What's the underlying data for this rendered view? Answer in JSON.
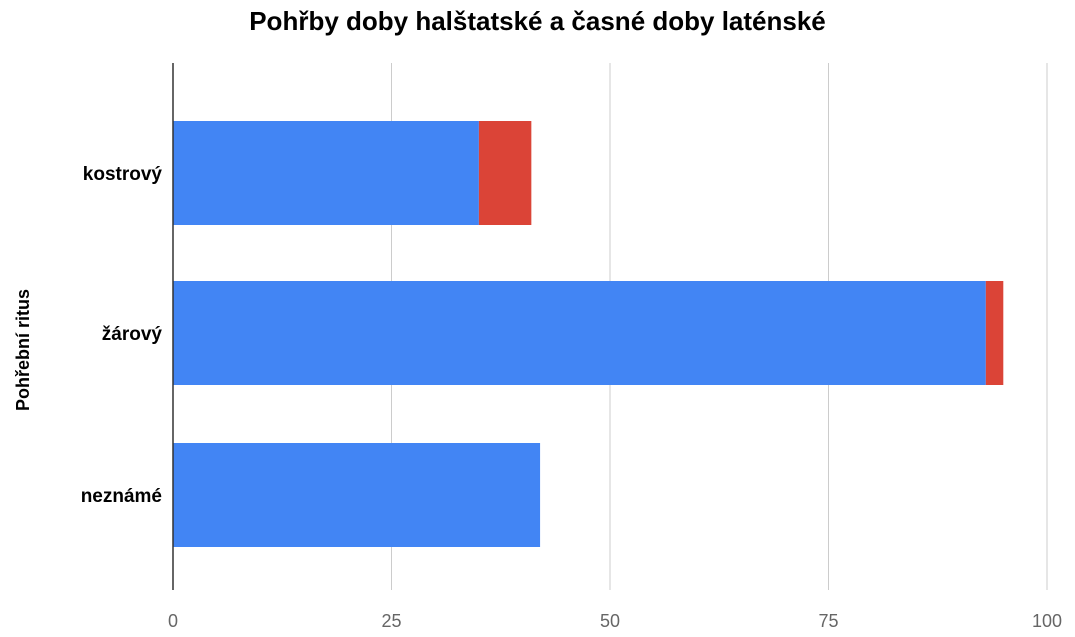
{
  "chart_data": {
    "type": "bar",
    "orientation": "horizontal",
    "stacked": true,
    "title": "Pohřby doby halštatské a časné doby laténské",
    "xlabel": "",
    "ylabel": "Pohřební ritus",
    "categories": [
      "kostrový",
      "žárový",
      "neznámé"
    ],
    "series": [
      {
        "color": "#4285f4",
        "values": [
          35,
          93,
          42
        ]
      },
      {
        "color": "#db4437",
        "values": [
          6,
          2,
          0
        ]
      }
    ],
    "xlim": [
      0,
      100
    ],
    "xticks": [
      "0",
      "25",
      "50",
      "75",
      "100"
    ],
    "grid": true,
    "legend": "none"
  }
}
